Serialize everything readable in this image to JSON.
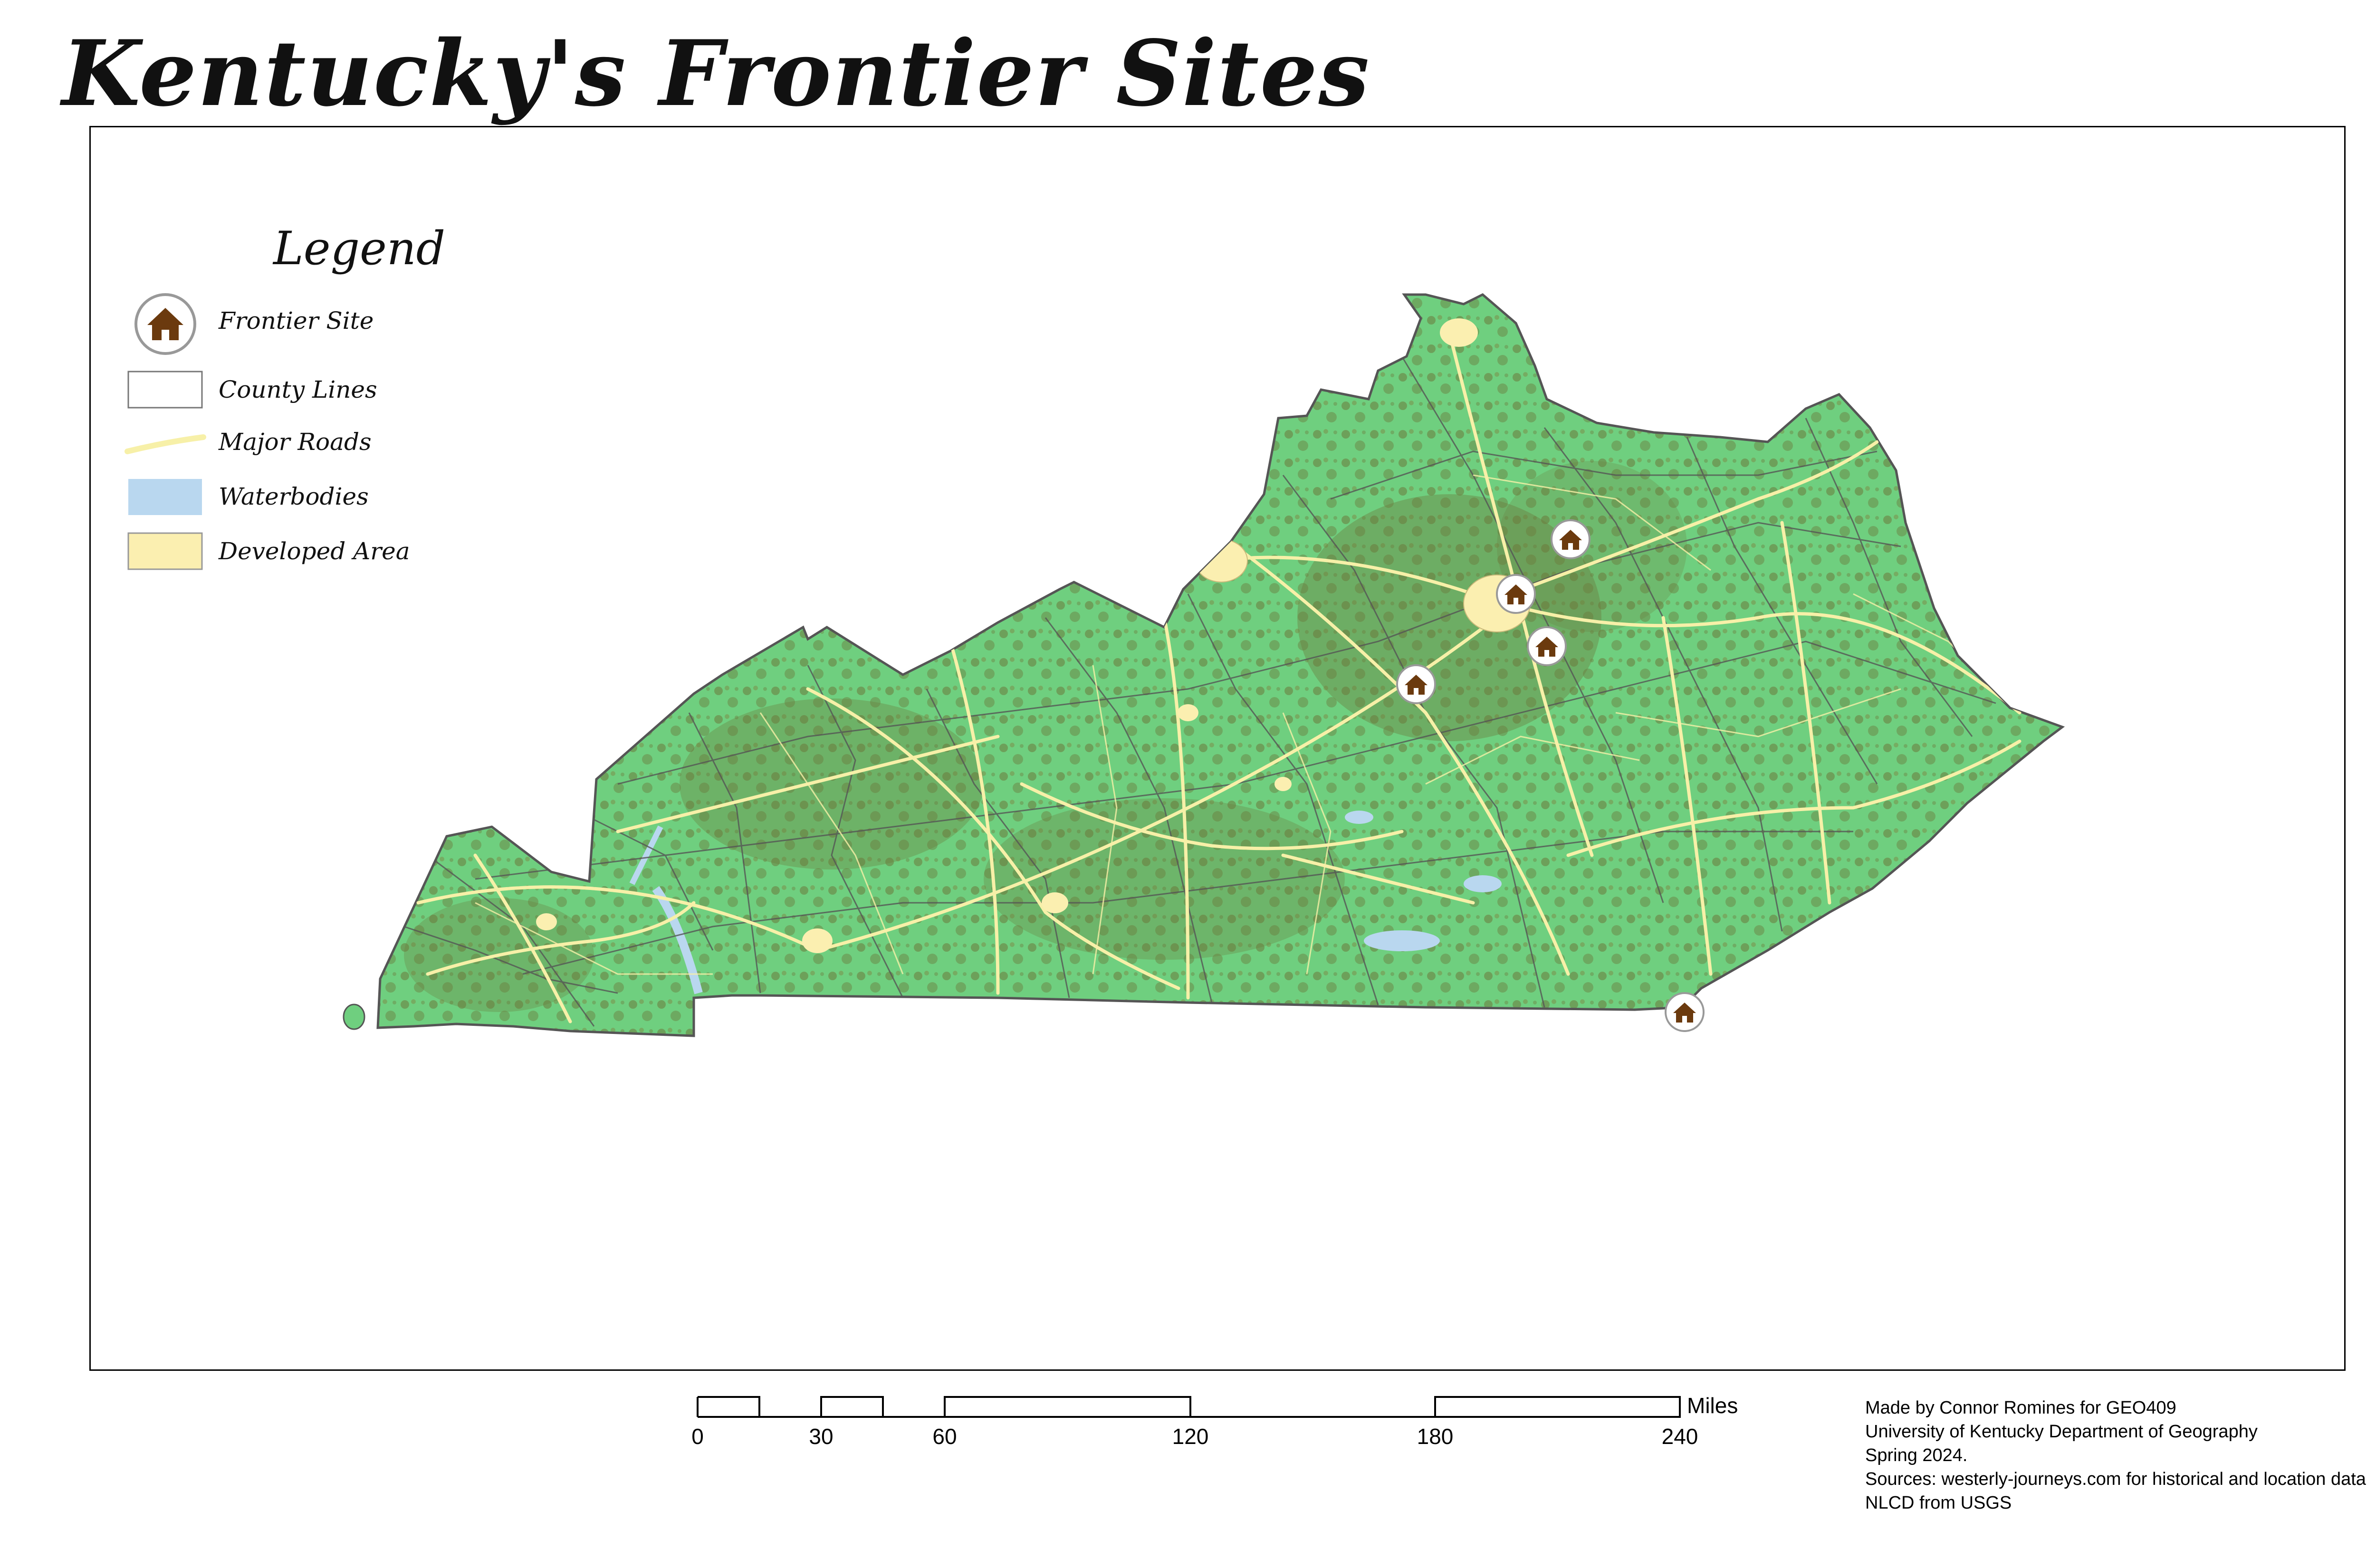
{
  "title": "Kentucky's Frontier Sites",
  "legend": {
    "title": "Legend",
    "items": [
      {
        "label": "Frontier Site",
        "icon": "cabin-icon"
      },
      {
        "label": "County Lines",
        "icon": "county-lines-swatch"
      },
      {
        "label": "Major Roads",
        "icon": "major-roads-swatch"
      },
      {
        "label": "Waterbodies",
        "icon": "waterbodies-swatch"
      },
      {
        "label": "Developed Area",
        "icon": "developed-area-swatch"
      }
    ]
  },
  "scale_bar": {
    "ticks": [
      "0",
      "30",
      "60",
      "120",
      "180",
      "240"
    ],
    "unit": "Miles"
  },
  "credits": [
    "Made by Connor Romines for GEO409",
    "University of Kentucky Department of Geography",
    "Spring 2024.",
    "Sources: westerly-journeys.com for historical and location data",
    "NLCD from USGS"
  ],
  "colors": {
    "land": "#6fcf7f",
    "forest": "#6b7a3c",
    "roads": "#f7f0a8",
    "water": "#b9d7ef",
    "developed": "#fbefb0",
    "county_lines": "#555555",
    "frontier_site": "#6b3a0e"
  }
}
